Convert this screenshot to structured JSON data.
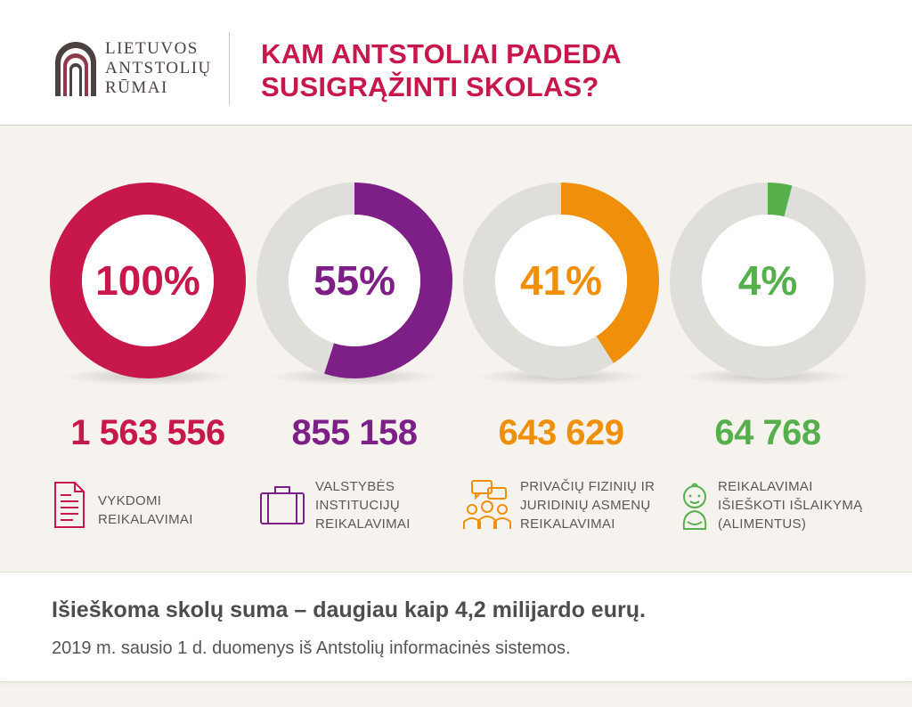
{
  "header": {
    "logo_lines": [
      "LIETUVOS",
      "ANTSTOLIŲ",
      "RŪMAI"
    ],
    "title_lines": [
      "KAM ANTSTOLIAI PADEDA",
      "SUSIGRĄŽINTI SKOLAS?"
    ]
  },
  "colors": {
    "title": "#c8174a",
    "track": "#e0dedb",
    "red": "#c8174a",
    "purple": "#7d1f87",
    "orange": "#f0900a",
    "green": "#55b04c"
  },
  "chart_data": {
    "type": "donut",
    "series": [
      {
        "value_percent": 100,
        "label": "100%",
        "count": "1 563 556",
        "color": "#c8174a",
        "description_lines": [
          "VYKDOMI",
          "REIKALAVIMAI"
        ],
        "icon": "document-icon"
      },
      {
        "value_percent": 55,
        "label": "55%",
        "count": "855 158",
        "color": "#7d1f87",
        "description_lines": [
          "VALSTYBĖS",
          "INSTITUCIJŲ",
          "REIKALAVIMAI"
        ],
        "icon": "briefcase-icon"
      },
      {
        "value_percent": 41,
        "label": "41%",
        "count": "643 629",
        "color": "#f0900a",
        "description_lines": [
          "PRIVAČIŲ FIZINIŲ IR",
          "JURIDINIŲ ASMENŲ",
          "REIKALAVIMAI"
        ],
        "icon": "people-chat-icon"
      },
      {
        "value_percent": 4,
        "label": "4%",
        "count": "64 768",
        "color": "#55b04c",
        "description_lines": [
          "REIKALAVIMAI",
          "IŠIEŠKOTI IŠLAIKYMĄ",
          "(ALIMENTUS)"
        ],
        "icon": "baby-icon"
      }
    ]
  },
  "footer": {
    "headline": "Išieškoma skolų suma – daugiau kaip 4,2 milijardo eurų.",
    "source": "2019 m. sausio 1 d. duomenys iš Antstolių informacinės sistemos."
  }
}
